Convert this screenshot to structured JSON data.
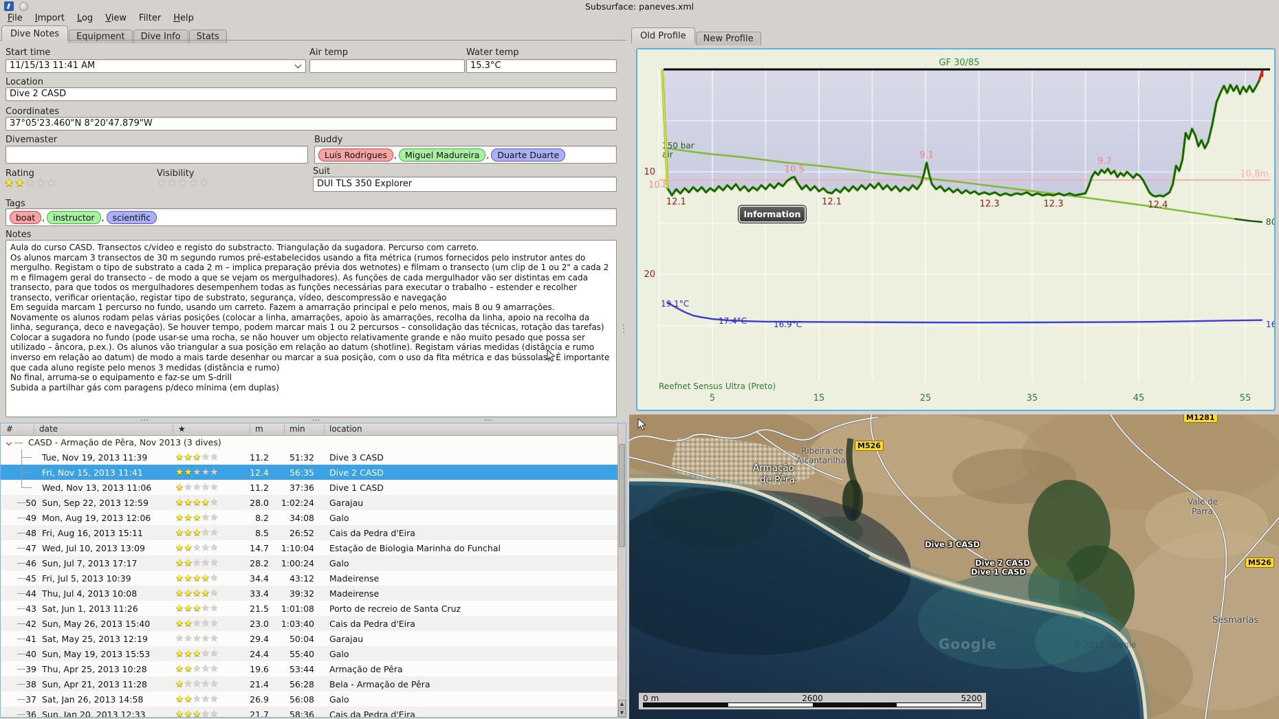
{
  "window": {
    "title": "Subsurface: paneves.xml"
  },
  "menu": {
    "items": [
      {
        "label": "File",
        "underline": true
      },
      {
        "label": "Import",
        "underline": true
      },
      {
        "label": "Log",
        "underline": true
      },
      {
        "label": "View",
        "underline": true
      },
      {
        "label": "Filter",
        "underline": false
      },
      {
        "label": "Help",
        "underline": true
      }
    ]
  },
  "left_tabs": {
    "items": [
      "Dive Notes",
      "Equipment",
      "Dive Info",
      "Stats"
    ],
    "active": "Dive Notes"
  },
  "form": {
    "start_time": {
      "label": "Start time",
      "value": "11/15/13 11:41 AM"
    },
    "air_temp": {
      "label": "Air temp",
      "value": ""
    },
    "water_temp": {
      "label": "Water temp",
      "value": "15.3°C"
    },
    "location": {
      "label": "Location",
      "value": "Dive 2 CASD"
    },
    "coordinates": {
      "label": "Coordinates",
      "value": "37°05'23.460\"N 8°20'47.879\"W"
    },
    "divemaster": {
      "label": "Divemaster",
      "value": ""
    },
    "buddy": {
      "label": "Buddy",
      "pills": [
        {
          "text": "Luís Rodrigues",
          "bg": "#f6a4a4",
          "border": "#cc4848"
        },
        {
          "text": "Miguel Madureira",
          "bg": "#a8f0a2",
          "border": "#4aa84a"
        },
        {
          "text": "Duarte Duarte",
          "bg": "#abaff4",
          "border": "#5a5ace"
        }
      ]
    },
    "rating": {
      "label": "Rating",
      "stars": 2,
      "max": 5
    },
    "visibility": {
      "label": "Visibility",
      "stars": 0,
      "max": 5
    },
    "suit": {
      "label": "Suit",
      "value": "DUI TLS 350 Explorer"
    },
    "tags": {
      "label": "Tags",
      "pills": [
        {
          "text": "boat",
          "bg": "#f6a4a4",
          "border": "#cc4848"
        },
        {
          "text": "instructor",
          "bg": "#a8f0a2",
          "border": "#4aa84a"
        },
        {
          "text": "scientific",
          "bg": "#abaff4",
          "border": "#5a5ace"
        }
      ]
    },
    "notes": {
      "label": "Notes",
      "text": "Aula do curso CASD. Transectos c/video e registo do substracto. Triangulação da sugadora. Percurso com carreto.\nOs alunos marcam 3 transectos de 30 m segundo rumos pré-estabelecidos usando a fita métrica (rumos fornecidos pelo instrutor antes do mergulho. Registam o tipo de substrato a cada 2 m – implica preparação prévia dos wetnotes) e filmam o transecto (um clip de 1 ou 2\" a cada 2 m e filmagem geral do transecto – de modo a que se vejam os mergulhadores). As funções de cada mergulhador vão ser distintas em cada transecto, para que todos os mergulhadores desempenhem todas as funções necessárias para executar o trabalho – estender e recolher transecto, verificar orientação, registar tipo de substrato, segurança, vídeo, descompressão e navegação\nEm seguida marcam 1 percurso no fundo, usando um carreto. Fazem a amarração principal e pelo menos, mais 8 ou 9 amarrações.\nNovamente os alunos rodam pelas várias posições (colocar a linha, amarrações, apoio às amarrações, recolha da linha, apoio na recolha da linha, segurança, deco e navegação). Se houver tempo, podem marcar mais 1 ou 2 percursos – consolidação das técnicas, rotação das tarefas)\nColocar a sugadora no fundo (pode usar-se uma rocha, se não houver um objecto relativamente grande e não muito pesado que possa ser utilizado – âncora, p.ex.). Os alunos vão triangular a sua posição em relação ao datum (shotline). Registam várias medidas (distância e rumo inverso em relação ao datum) de modo a mais tarde desenhar ou marcar a sua posição, com o uso da fita métrica e das bússolas). É importante que cada aluno registe pelo menos 3 medidas (distância e rumo)\nNo final, arruma-se o equipamento e faz-se um S-drill\nSubida a partilhar gás com paragens p/deco mínima (em duplas)"
    }
  },
  "dive_table": {
    "columns": [
      "#",
      "date",
      "★",
      "m",
      "min",
      "location"
    ],
    "trip_title": "CASD - Armação de Pêra, Nov 2013 (3 dives)",
    "rows": [
      {
        "num": "",
        "date": "Tue, Nov 19, 2013 11:39",
        "stars": 3,
        "depth": "11.2",
        "duration": "51:32",
        "location": "Dive 3 CASD",
        "trip": true
      },
      {
        "num": "",
        "date": "Fri, Nov 15, 2013 11:41",
        "stars": 2,
        "depth": "12.4",
        "duration": "56:35",
        "location": "Dive 2 CASD",
        "trip": true,
        "selected": true
      },
      {
        "num": "",
        "date": "Wed, Nov 13, 2013 11:06",
        "stars": 1,
        "depth": "11.2",
        "duration": "37:36",
        "location": "Dive 1 CASD",
        "trip": true
      },
      {
        "num": "50",
        "date": "Sun, Sep 22, 2013 12:59",
        "stars": 4,
        "depth": "28.0",
        "duration": "1:02:24",
        "location": "Garajau"
      },
      {
        "num": "49",
        "date": "Mon, Aug 19, 2013 12:06",
        "stars": 3,
        "depth": "8.2",
        "duration": "34:08",
        "location": "Galo"
      },
      {
        "num": "48",
        "date": "Fri, Aug 16, 2013 15:11",
        "stars": 3,
        "depth": "8.5",
        "duration": "26:52",
        "location": "Cais da Pedra d'Eira"
      },
      {
        "num": "47",
        "date": "Wed, Jul 10, 2013 13:09",
        "stars": 2,
        "depth": "14.7",
        "duration": "1:10:04",
        "location": "Estação de Biologia Marinha do Funchal"
      },
      {
        "num": "46",
        "date": "Sun, Jul 7, 2013 17:17",
        "stars": 2,
        "depth": "28.2",
        "duration": "1:00:24",
        "location": "Galo"
      },
      {
        "num": "45",
        "date": "Fri, Jul 5, 2013 10:39",
        "stars": 4,
        "depth": "34.4",
        "duration": "43:12",
        "location": "Madeirense"
      },
      {
        "num": "44",
        "date": "Thu, Jul 4, 2013 10:08",
        "stars": 4,
        "depth": "33.4",
        "duration": "39:32",
        "location": "Madeirense"
      },
      {
        "num": "43",
        "date": "Sat, Jun 1, 2013 11:26",
        "stars": 3,
        "depth": "21.5",
        "duration": "1:01:08",
        "location": "Porto de recreio de Santa Cruz"
      },
      {
        "num": "42",
        "date": "Sun, May 26, 2013 15:40",
        "stars": 2,
        "depth": "23.0",
        "duration": "1:03:40",
        "location": "Cais da Pedra d'Eira"
      },
      {
        "num": "41",
        "date": "Sat, May 25, 2013 12:19",
        "stars": 0,
        "depth": "29.4",
        "duration": "50:04",
        "location": "Garajau"
      },
      {
        "num": "40",
        "date": "Sun, May 19, 2013 15:53",
        "stars": 3,
        "depth": "24.4",
        "duration": "55:40",
        "location": "Galo"
      },
      {
        "num": "39",
        "date": "Thu, Apr 25, 2013 10:28",
        "stars": 2,
        "depth": "19.6",
        "duration": "53:44",
        "location": "Armação de Pêra"
      },
      {
        "num": "38",
        "date": "Sun, Apr 21, 2013 11:28",
        "stars": 1,
        "depth": "21.4",
        "duration": "56:28",
        "location": "Bela - Armação de Pêra"
      },
      {
        "num": "37",
        "date": "Sat, Jan 26, 2013 14:58",
        "stars": 2,
        "depth": "26.9",
        "duration": "56:08",
        "location": "Galo"
      },
      {
        "num": "36",
        "date": "Sun, Jan 20, 2013 12:33",
        "stars": 3,
        "depth": "21.7",
        "duration": "58:36",
        "location": "Cais da Pedra d'Eira"
      }
    ]
  },
  "profile": {
    "tabs": [
      "Old Profile",
      "New Profile"
    ],
    "active_tab": "Old Profile",
    "info_button": "Information"
  },
  "chart_data": {
    "type": "line",
    "title": "GF 30/85",
    "computer": "Reefnet Sensus Ultra (Preto)",
    "time_ticks": [
      5,
      15,
      25,
      35,
      45,
      55
    ],
    "depth_ticks": [
      10,
      20
    ],
    "axis_range": {
      "time_min": [
        0,
        58
      ],
      "depth_m": [
        0,
        30
      ]
    },
    "grid": true,
    "mean_depth": {
      "value_m": 10.8,
      "right_label": "10.8m",
      "left_label": "10.8"
    },
    "pressure": {
      "start_label": "150 bar",
      "gas_label": "air",
      "end_label": "80",
      "series": [
        [
          0.4,
          150
        ],
        [
          4,
          145
        ],
        [
          8,
          141
        ],
        [
          12,
          136
        ],
        [
          16,
          132
        ],
        [
          20,
          127
        ],
        [
          24,
          123
        ],
        [
          25.2,
          121
        ],
        [
          28,
          118
        ],
        [
          32,
          113
        ],
        [
          36,
          108
        ],
        [
          40,
          103
        ],
        [
          43,
          99
        ],
        [
          46,
          95
        ],
        [
          48,
          92
        ],
        [
          50,
          89
        ],
        [
          52,
          86
        ],
        [
          54,
          83
        ],
        [
          55.5,
          81
        ],
        [
          56.6,
          80
        ]
      ]
    },
    "temperature": {
      "series": [
        [
          0.8,
          19.1
        ],
        [
          1.6,
          18.5
        ],
        [
          2.4,
          18.0
        ],
        [
          3.2,
          17.6
        ],
        [
          4,
          17.4
        ],
        [
          5,
          17.2
        ],
        [
          6.5,
          17.05
        ],
        [
          8,
          16.97
        ],
        [
          10,
          16.9
        ],
        [
          14,
          16.87
        ],
        [
          18,
          16.85
        ],
        [
          24,
          16.82
        ],
        [
          30,
          16.8
        ],
        [
          36,
          16.82
        ],
        [
          42,
          16.85
        ],
        [
          46,
          16.88
        ],
        [
          50,
          16.95
        ],
        [
          53,
          17.02
        ],
        [
          56.6,
          17.08
        ]
      ],
      "labels": [
        {
          "x": 34,
          "y": 374,
          "text": "19.1°C"
        },
        {
          "x": 118,
          "y": 399,
          "text": "17.4°C"
        },
        {
          "x": 198,
          "y": 404,
          "text": "16.9°C"
        },
        {
          "x": 914,
          "y": 404,
          "text": "16"
        }
      ]
    },
    "depth_labels": [
      {
        "t": 1.6,
        "m": 12.1,
        "text": "12.1",
        "kind": "max"
      },
      {
        "t": 12.7,
        "m": 10.5,
        "text": "10.5",
        "kind": "min"
      },
      {
        "t": 16.2,
        "m": 12.1,
        "text": "12.1",
        "kind": "max"
      },
      {
        "t": 25.1,
        "m": 9.1,
        "text": "9.1",
        "kind": "min"
      },
      {
        "t": 31,
        "m": 12.3,
        "text": "12.3",
        "kind": "max"
      },
      {
        "t": 37,
        "m": 12.3,
        "text": "12.3",
        "kind": "max"
      },
      {
        "t": 41.8,
        "m": 9.7,
        "text": "9.7",
        "kind": "min"
      },
      {
        "t": 46.8,
        "m": 12.4,
        "text": "12.4",
        "kind": "max"
      }
    ],
    "depth_series": [
      [
        0.3,
        0
      ],
      [
        0.8,
        11.6
      ],
      [
        1.2,
        12.3
      ],
      [
        1.6,
        11.7
      ],
      [
        2,
        12.1
      ],
      [
        2.4,
        11.6
      ],
      [
        2.8,
        12
      ],
      [
        3.2,
        11.5
      ],
      [
        3.6,
        11.9
      ],
      [
        4,
        11.5
      ],
      [
        4.4,
        12
      ],
      [
        4.8,
        11.6
      ],
      [
        5.2,
        11.9
      ],
      [
        5.6,
        11.4
      ],
      [
        6,
        11.8
      ],
      [
        6.4,
        11.3
      ],
      [
        6.8,
        11.7
      ],
      [
        7.2,
        11.2
      ],
      [
        7.6,
        11.8
      ],
      [
        8,
        11.4
      ],
      [
        8.4,
        11.9
      ],
      [
        8.8,
        11.5
      ],
      [
        9.2,
        11.8
      ],
      [
        9.6,
        11.3
      ],
      [
        10,
        11.7
      ],
      [
        10.4,
        11.2
      ],
      [
        10.8,
        11.6
      ],
      [
        11.2,
        11.1
      ],
      [
        11.6,
        11.4
      ],
      [
        12,
        10.9
      ],
      [
        12.4,
        10.6
      ],
      [
        12.7,
        10.5
      ],
      [
        13,
        11.1
      ],
      [
        13.4,
        11.7
      ],
      [
        13.8,
        11.3
      ],
      [
        14.2,
        11.8
      ],
      [
        14.6,
        11.4
      ],
      [
        15,
        11.9
      ],
      [
        15.4,
        11.6
      ],
      [
        15.8,
        12
      ],
      [
        16.2,
        12.1
      ],
      [
        16.6,
        11.7
      ],
      [
        17,
        12
      ],
      [
        17.4,
        11.5
      ],
      [
        17.8,
        11.9
      ],
      [
        18.2,
        11.4
      ],
      [
        18.6,
        11.8
      ],
      [
        19,
        11.3
      ],
      [
        19.4,
        11.7
      ],
      [
        19.8,
        11.2
      ],
      [
        20.2,
        11.6
      ],
      [
        20.6,
        11.1
      ],
      [
        21,
        11.7
      ],
      [
        21.4,
        11.3
      ],
      [
        21.8,
        11.8
      ],
      [
        22.2,
        11.4
      ],
      [
        22.6,
        11.9
      ],
      [
        23,
        11.5
      ],
      [
        23.4,
        11.8
      ],
      [
        23.8,
        11.3
      ],
      [
        24.2,
        11.7
      ],
      [
        24.6,
        11.1
      ],
      [
        24.85,
        10.2
      ],
      [
        25.1,
        9.1
      ],
      [
        25.35,
        10.3
      ],
      [
        25.6,
        11.2
      ],
      [
        26,
        11.7
      ],
      [
        26.4,
        11.4
      ],
      [
        26.8,
        11.9
      ],
      [
        27.2,
        11.6
      ],
      [
        27.6,
        12
      ],
      [
        28,
        11.7
      ],
      [
        28.4,
        12.1
      ],
      [
        28.8,
        11.8
      ],
      [
        29.2,
        12.1
      ],
      [
        29.6,
        11.9
      ],
      [
        30,
        12.2
      ],
      [
        30.5,
        12
      ],
      [
        31,
        12.2
      ],
      [
        31.5,
        12
      ],
      [
        32,
        12.3
      ],
      [
        32.5,
        12.1
      ],
      [
        33,
        12.3
      ],
      [
        33.5,
        12.1
      ],
      [
        34,
        12.2
      ],
      [
        34.5,
        12
      ],
      [
        35,
        12.3
      ],
      [
        35.5,
        12.1
      ],
      [
        36,
        12.3
      ],
      [
        36.5,
        12.2
      ],
      [
        37,
        12.3
      ],
      [
        37.5,
        12.1
      ],
      [
        38,
        12.3
      ],
      [
        38.5,
        12.1
      ],
      [
        39,
        12.3
      ],
      [
        39.5,
        12.2
      ],
      [
        40,
        12.1
      ],
      [
        40.3,
        11.4
      ],
      [
        40.6,
        10.5
      ],
      [
        40.9,
        10
      ],
      [
        41.2,
        10.3
      ],
      [
        41.5,
        9.8
      ],
      [
        41.8,
        10.1
      ],
      [
        42.1,
        9.7
      ],
      [
        42.4,
        10.2
      ],
      [
        42.7,
        9.9
      ],
      [
        43,
        10.5
      ],
      [
        43.3,
        10.1
      ],
      [
        43.6,
        10.4
      ],
      [
        43.9,
        10
      ],
      [
        44.2,
        10.3
      ],
      [
        44.5,
        10.6
      ],
      [
        44.8,
        10.2
      ],
      [
        45.1,
        10.4
      ],
      [
        45.4,
        10.8
      ],
      [
        45.7,
        11.4
      ],
      [
        46,
        12
      ],
      [
        46.3,
        12.3
      ],
      [
        46.6,
        12.4
      ],
      [
        47,
        12.3
      ],
      [
        47.3,
        12.4
      ],
      [
        47.6,
        12.2
      ],
      [
        47.9,
        12
      ],
      [
        48.2,
        11.2
      ],
      [
        48.5,
        9.4
      ],
      [
        48.8,
        9.9
      ],
      [
        49.1,
        8.8
      ],
      [
        49.4,
        6.2
      ],
      [
        49.7,
        6.8
      ],
      [
        50,
        5.8
      ],
      [
        50.3,
        6.4
      ],
      [
        50.6,
        7.5
      ],
      [
        50.9,
        6.9
      ],
      [
        51.2,
        7.7
      ],
      [
        51.5,
        7.1
      ],
      [
        51.9,
        5.4
      ],
      [
        52.3,
        3.2
      ],
      [
        52.7,
        2.2
      ],
      [
        53,
        1.6
      ],
      [
        53.3,
        2.3
      ],
      [
        53.6,
        1.5
      ],
      [
        53.9,
        2.1
      ],
      [
        54.2,
        1.6
      ],
      [
        54.5,
        2.4
      ],
      [
        54.8,
        1.7
      ],
      [
        55.1,
        2.2
      ],
      [
        55.4,
        1.6
      ],
      [
        55.7,
        2.2
      ],
      [
        56,
        1.7
      ],
      [
        56.3,
        1.1
      ],
      [
        56.6,
        0.1
      ]
    ],
    "colors": {
      "depth_line": "#134f10",
      "depth_edge": "#4ea214",
      "descent": "#d8d832",
      "ascent_end": "#e02020",
      "pressure": "#85bb33",
      "temperature": "#3b3bd6",
      "mean_line": "#f5aeb4",
      "labels_red": "#8b2020",
      "labels_pink": "#f08080",
      "axis_green": "#2e7d32",
      "title_green": "#2f8b3a",
      "pressure_text": "#1d5c1d"
    }
  },
  "map": {
    "labels": {
      "armacao_line1": "Armação",
      "armacao_line2": "de Pêra",
      "ribeira_line1": "Ribeira de",
      "ribeira_line2": "Alcantarilha",
      "vale_line1": "Vale de",
      "vale_line2": "Parra",
      "sesmarias": "Sesmarias",
      "dive3": "Dive 3 CASD",
      "dive2": "Dive 2 CASD",
      "dive1": "Dive 1 CASD"
    },
    "badges": {
      "m526_a": "M526",
      "m526_b": "M526",
      "m1281": "M1281"
    },
    "copyright": "© 2013 Google",
    "watermark": "Google",
    "scale_bar": {
      "zero": "0 m",
      "mid": "2600",
      "max": "5200"
    }
  }
}
